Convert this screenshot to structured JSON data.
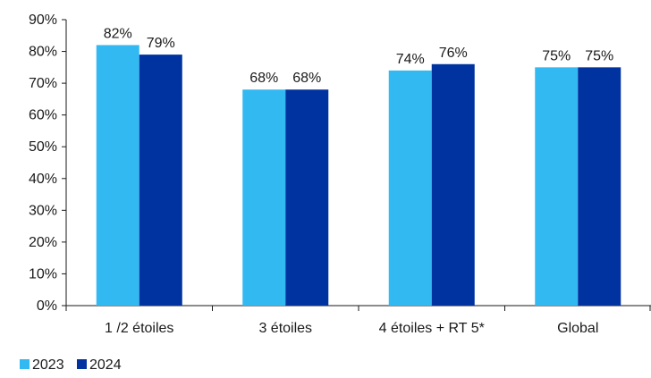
{
  "chart_data": {
    "type": "bar",
    "categories": [
      "1 /2 étoiles",
      "3 étoiles",
      "4 étoiles + RT 5*",
      "Global"
    ],
    "series": [
      {
        "name": "2023",
        "values": [
          82,
          68,
          74,
          75
        ],
        "labels": [
          "82%",
          "68%",
          "74%",
          "75%"
        ],
        "color": "#33b9f2"
      },
      {
        "name": "2024",
        "values": [
          79,
          68,
          76,
          75
        ],
        "labels": [
          "79%",
          "68%",
          "76%",
          "75%"
        ],
        "color": "#0033a0"
      }
    ],
    "ylim": [
      0,
      90
    ],
    "yticks": [
      0,
      10,
      20,
      30,
      40,
      50,
      60,
      70,
      80,
      90
    ],
    "ytick_labels": [
      "0%",
      "10%",
      "20%",
      "30%",
      "40%",
      "50%",
      "60%",
      "70%",
      "80%",
      "90%"
    ],
    "grid": false,
    "legend_position": "bottom-left"
  }
}
